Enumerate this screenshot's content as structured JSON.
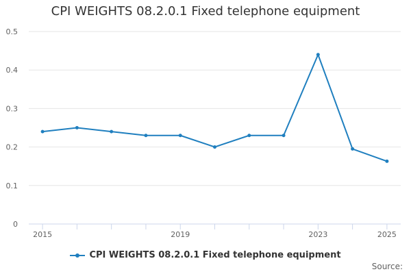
{
  "chart_data": {
    "type": "line",
    "title": "CPI WEIGHTS 08.2.0.1 Fixed telephone equipment",
    "x": [
      2015,
      2016,
      2017,
      2018,
      2019,
      2020,
      2021,
      2022,
      2023,
      2024,
      2025
    ],
    "x_tick_labels": [
      "2015",
      "2019",
      "2023",
      "2025"
    ],
    "x_tick_values": [
      2015,
      2019,
      2023,
      2025
    ],
    "series": [
      {
        "name": "CPI WEIGHTS 08.2.0.1 Fixed telephone equipment",
        "values": [
          0.24,
          0.25,
          0.24,
          0.23,
          0.23,
          0.2,
          0.23,
          0.23,
          0.44,
          0.195,
          0.163
        ],
        "color": "#1f7fbf"
      }
    ],
    "y_ticks": [
      0,
      0.1,
      0.2,
      0.3,
      0.4,
      0.5
    ],
    "y_tick_labels": [
      "0",
      "0.1",
      "0.2",
      "0.3",
      "0.4",
      "0.5"
    ],
    "ylim": [
      0,
      0.5
    ],
    "xlim": [
      2014.6,
      2025.4
    ],
    "xlabel": "",
    "ylabel": "",
    "grid": true,
    "legend_position": "bottom-center"
  },
  "source_label": "Source:"
}
